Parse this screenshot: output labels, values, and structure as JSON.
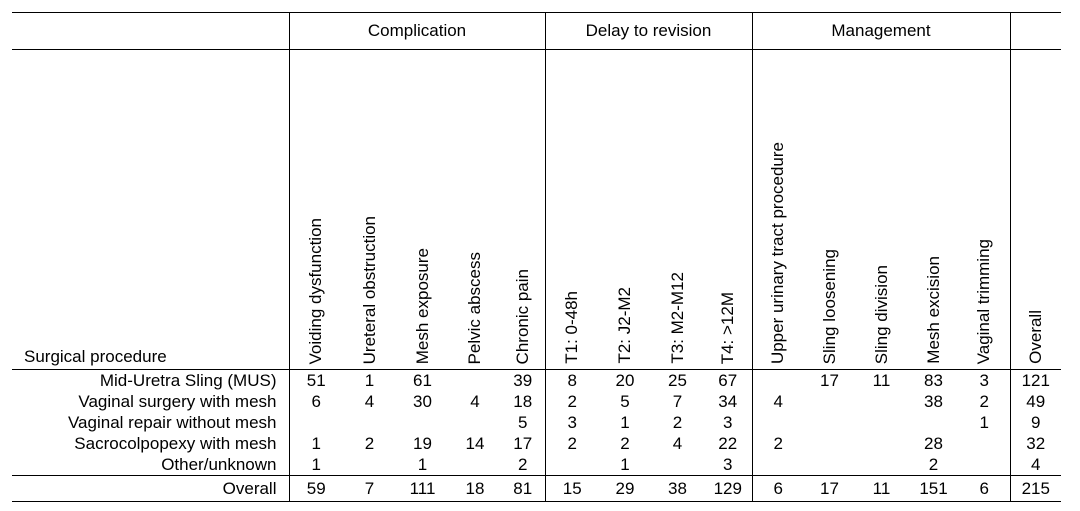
{
  "header": {
    "procedure_label": "Surgical procedure",
    "groups": {
      "complication": "Complication",
      "delay": "Delay to revision",
      "management": "Management"
    },
    "columns": [
      "Voiding dysfunction",
      "Ureteral obstruction",
      "Mesh exposure",
      "Pelvic abscess",
      "Chronic pain",
      "T1: 0-48h",
      "T2: J2-M2",
      "T3: M2-M12",
      "T4:  >12M",
      "Upper urinary tract procedure",
      "Sling loosening",
      "Sling division",
      "Mesh excision",
      "Vaginal trimming",
      "Overall"
    ]
  },
  "rows": [
    {
      "procedure": "Mid-Uretra Sling (MUS)",
      "values": [
        "51",
        "1",
        "61",
        "",
        "39",
        "8",
        "20",
        "25",
        "67",
        "",
        "17",
        "11",
        "83",
        "3",
        "121"
      ]
    },
    {
      "procedure": "Vaginal surgery with mesh",
      "values": [
        "6",
        "4",
        "30",
        "4",
        "18",
        "2",
        "5",
        "7",
        "34",
        "4",
        "",
        "",
        "38",
        "2",
        "49"
      ]
    },
    {
      "procedure": "Vaginal repair without mesh",
      "values": [
        "",
        "",
        "",
        "",
        "5",
        "3",
        "1",
        "2",
        "3",
        "",
        "",
        "",
        "",
        "1",
        "9"
      ]
    },
    {
      "procedure": "Sacrocolpopexy with mesh",
      "values": [
        "1",
        "2",
        "19",
        "14",
        "17",
        "2",
        "2",
        "4",
        "22",
        "2",
        "",
        "",
        "28",
        "",
        "32"
      ]
    },
    {
      "procedure": "Other/unknown",
      "values": [
        "1",
        "",
        "1",
        "",
        "2",
        "",
        "1",
        "",
        "3",
        "",
        "",
        "",
        "2",
        "",
        "4"
      ]
    }
  ],
  "overall": {
    "label": "Overall",
    "values": [
      "59",
      "7",
      "111",
      "18",
      "81",
      "15",
      "29",
      "38",
      "129",
      "6",
      "17",
      "11",
      "151",
      "6",
      "215"
    ]
  }
}
